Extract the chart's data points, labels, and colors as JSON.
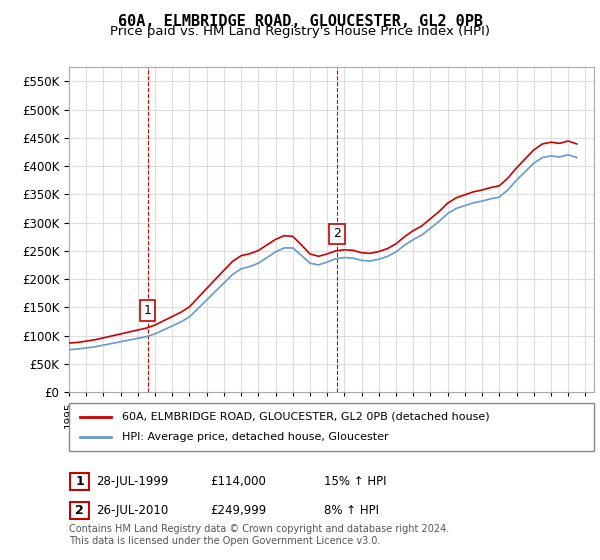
{
  "title": "60A, ELMBRIDGE ROAD, GLOUCESTER, GL2 0PB",
  "subtitle": "Price paid vs. HM Land Registry's House Price Index (HPI)",
  "ylabel_ticks": [
    0,
    50000,
    100000,
    150000,
    200000,
    250000,
    300000,
    350000,
    400000,
    450000,
    500000,
    550000
  ],
  "ylim": [
    0,
    575000
  ],
  "xlim_start": 1995.0,
  "xlim_end": 2025.5,
  "line_color_red": "#cc0000",
  "line_color_blue": "#6699cc",
  "marker1_x": 1999.57,
  "marker1_y": 114000,
  "marker1_label": "1",
  "marker2_x": 2010.57,
  "marker2_y": 249999,
  "marker2_label": "2",
  "legend_line1": "60A, ELMBRIDGE ROAD, GLOUCESTER, GL2 0PB (detached house)",
  "legend_line2": "HPI: Average price, detached house, Gloucester",
  "table_row1_num": "1",
  "table_row1_date": "28-JUL-1999",
  "table_row1_price": "£114,000",
  "table_row1_hpi": "15% ↑ HPI",
  "table_row2_num": "2",
  "table_row2_date": "26-JUL-2010",
  "table_row2_price": "£249,999",
  "table_row2_hpi": "8% ↑ HPI",
  "footer": "Contains HM Land Registry data © Crown copyright and database right 2024.\nThis data is licensed under the Open Government Licence v3.0.",
  "bg_color": "#ffffff",
  "grid_color": "#dddddd",
  "title_fontsize": 11,
  "subtitle_fontsize": 9.5
}
